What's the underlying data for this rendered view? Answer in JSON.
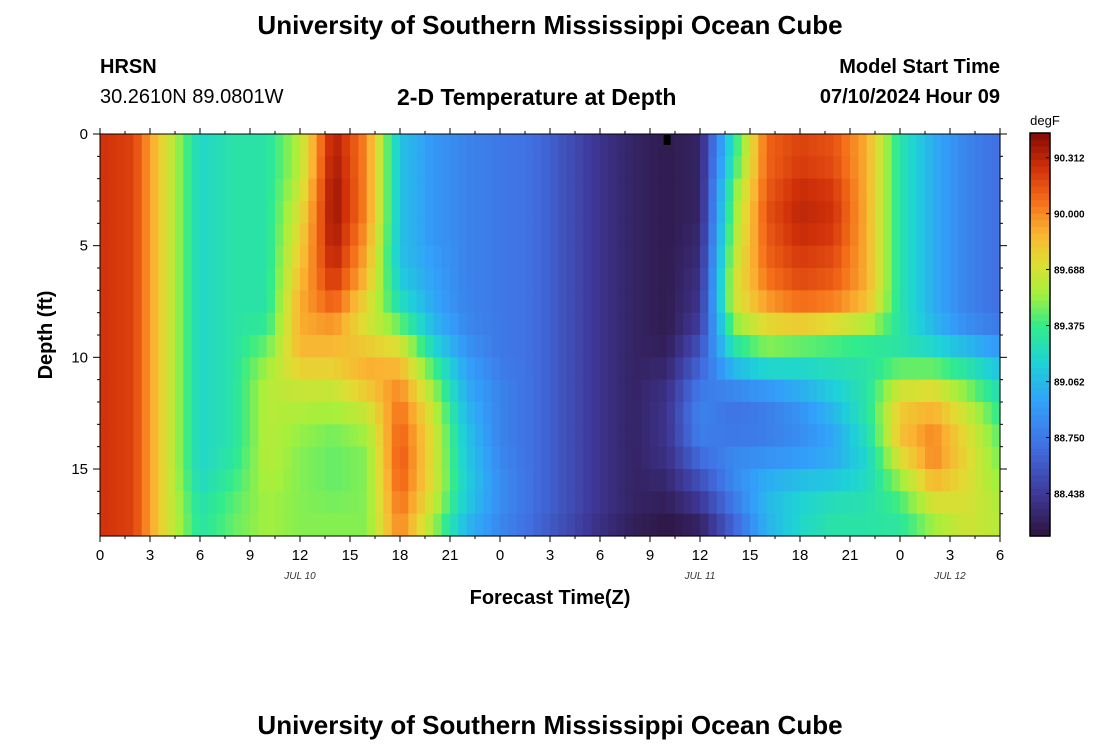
{
  "header": {
    "title_top": "University of Southern Mississippi Ocean Cube",
    "title_bottom": "University of Southern Mississippi Ocean Cube",
    "station": "HRSN",
    "coords": "30.2610N  89.0801W",
    "center_title": "2-D Temperature at Depth",
    "model_label": "Model Start Time",
    "model_time": "07/10/2024 Hour 09"
  },
  "chart_data": {
    "type": "heatmap",
    "title": "2-D Temperature at Depth",
    "xlabel": "Forecast Time(Z)",
    "ylabel": "Depth (ft)",
    "xlim": [
      0,
      54
    ],
    "ylim": [
      0,
      18
    ],
    "x_ticks": [
      "0",
      "3",
      "6",
      "9",
      "12",
      "15",
      "18",
      "21",
      "0",
      "3",
      "6",
      "9",
      "12",
      "15",
      "18",
      "21",
      "0",
      "3",
      "6"
    ],
    "y_ticks": [
      "0",
      "5",
      "10",
      "15"
    ],
    "date_labels": [
      {
        "text": "JUL 10",
        "hour": 12
      },
      {
        "text": "JUL 11",
        "hour": 36
      },
      {
        "text": "JUL 12",
        "hour": 51
      }
    ],
    "colorbar": {
      "unit": "degF",
      "min": 88.2,
      "max": 90.45,
      "ticks": [
        "90.312",
        "90.000",
        "89.688",
        "89.375",
        "89.062",
        "88.750",
        "88.438"
      ]
    },
    "grid": false,
    "depths_ft": [
      0,
      1,
      2,
      3,
      4,
      5,
      6,
      7,
      8,
      9,
      10,
      11,
      12,
      13,
      14,
      15,
      16,
      17,
      18
    ],
    "hours": [
      0,
      2,
      4,
      6,
      8,
      10,
      12,
      14,
      16,
      18,
      20,
      22,
      24,
      26,
      28,
      30,
      32,
      34,
      36,
      38,
      40,
      42,
      44,
      46,
      48,
      50,
      52,
      54
    ],
    "values_degF": [
      [
        90.25,
        90.2,
        89.7,
        89.2,
        89.3,
        89.3,
        89.6,
        90.35,
        90.0,
        89.1,
        88.9,
        88.8,
        88.75,
        88.7,
        88.55,
        88.4,
        88.3,
        88.25,
        88.3,
        89.3,
        90.1,
        90.2,
        90.15,
        89.9,
        89.3,
        89.0,
        88.8,
        88.7
      ],
      [
        90.25,
        90.2,
        89.7,
        89.2,
        89.3,
        89.3,
        89.6,
        90.35,
        90.0,
        89.1,
        88.9,
        88.8,
        88.75,
        88.7,
        88.55,
        88.4,
        88.3,
        88.25,
        88.3,
        89.3,
        90.1,
        90.2,
        90.15,
        89.9,
        89.3,
        89.0,
        88.8,
        88.7
      ],
      [
        90.25,
        90.2,
        89.7,
        89.2,
        89.3,
        89.3,
        89.6,
        90.4,
        90.0,
        89.1,
        88.9,
        88.8,
        88.75,
        88.7,
        88.55,
        88.4,
        88.3,
        88.25,
        88.3,
        89.4,
        90.1,
        90.25,
        90.2,
        89.9,
        89.3,
        89.0,
        88.8,
        88.7
      ],
      [
        90.25,
        90.2,
        89.7,
        89.2,
        89.3,
        89.3,
        89.7,
        90.4,
        90.0,
        89.1,
        88.9,
        88.8,
        88.75,
        88.7,
        88.55,
        88.4,
        88.3,
        88.25,
        88.3,
        89.5,
        90.15,
        90.3,
        90.25,
        89.9,
        89.3,
        89.0,
        88.8,
        88.7
      ],
      [
        90.25,
        90.2,
        89.7,
        89.2,
        89.3,
        89.3,
        89.7,
        90.4,
        90.0,
        89.1,
        88.9,
        88.8,
        88.75,
        88.7,
        88.55,
        88.4,
        88.3,
        88.25,
        88.3,
        89.5,
        90.15,
        90.3,
        90.25,
        89.9,
        89.3,
        89.0,
        88.8,
        88.7
      ],
      [
        90.25,
        90.2,
        89.7,
        89.2,
        89.3,
        89.3,
        89.8,
        90.35,
        89.9,
        89.1,
        88.9,
        88.8,
        88.75,
        88.7,
        88.55,
        88.4,
        88.3,
        88.25,
        88.35,
        89.6,
        90.1,
        90.25,
        90.2,
        89.9,
        89.3,
        89.0,
        88.8,
        88.7
      ],
      [
        90.25,
        90.2,
        89.7,
        89.2,
        89.3,
        89.3,
        89.8,
        90.3,
        89.9,
        89.1,
        88.95,
        88.8,
        88.75,
        88.7,
        88.55,
        88.4,
        88.3,
        88.25,
        88.35,
        89.6,
        90.1,
        90.2,
        90.15,
        89.9,
        89.3,
        89.0,
        88.8,
        88.7
      ],
      [
        90.25,
        90.2,
        89.7,
        89.2,
        89.3,
        89.3,
        89.9,
        90.2,
        89.8,
        89.2,
        88.95,
        88.8,
        88.75,
        88.7,
        88.55,
        88.4,
        88.3,
        88.25,
        88.4,
        89.7,
        90.0,
        90.15,
        90.1,
        89.9,
        89.3,
        89.0,
        88.8,
        88.7
      ],
      [
        90.25,
        90.2,
        89.7,
        89.2,
        89.3,
        89.3,
        89.9,
        90.05,
        89.7,
        89.3,
        89.0,
        88.8,
        88.75,
        88.7,
        88.55,
        88.4,
        88.3,
        88.25,
        88.4,
        89.6,
        89.9,
        90.0,
        89.95,
        89.8,
        89.3,
        89.0,
        88.8,
        88.7
      ],
      [
        90.25,
        90.2,
        89.7,
        89.2,
        89.3,
        89.4,
        89.9,
        89.9,
        89.7,
        89.6,
        89.1,
        88.85,
        88.75,
        88.7,
        88.55,
        88.4,
        88.3,
        88.25,
        88.5,
        89.4,
        89.6,
        89.6,
        89.5,
        89.4,
        89.3,
        89.1,
        88.9,
        88.8
      ],
      [
        90.25,
        90.2,
        89.7,
        89.2,
        89.3,
        89.5,
        89.85,
        89.85,
        89.9,
        89.8,
        89.3,
        88.9,
        88.75,
        88.7,
        88.55,
        88.4,
        88.3,
        88.3,
        88.6,
        89.2,
        89.4,
        89.3,
        89.3,
        89.3,
        89.3,
        89.3,
        89.2,
        89.0
      ],
      [
        90.25,
        90.2,
        89.7,
        89.2,
        89.3,
        89.6,
        89.7,
        89.7,
        89.9,
        89.95,
        89.5,
        89.0,
        88.8,
        88.7,
        88.55,
        88.4,
        88.3,
        88.35,
        88.7,
        88.9,
        89.0,
        89.1,
        89.2,
        89.3,
        89.6,
        89.6,
        89.4,
        89.2
      ],
      [
        90.25,
        90.2,
        89.7,
        89.2,
        89.3,
        89.6,
        89.6,
        89.6,
        89.7,
        90.05,
        89.6,
        89.0,
        88.8,
        88.7,
        88.55,
        88.4,
        88.3,
        88.4,
        88.8,
        88.75,
        88.8,
        88.9,
        89.1,
        89.3,
        89.75,
        89.85,
        89.6,
        89.3
      ],
      [
        90.25,
        90.2,
        89.7,
        89.2,
        89.3,
        89.6,
        89.55,
        89.5,
        89.6,
        90.1,
        89.7,
        89.1,
        88.8,
        88.7,
        88.55,
        88.4,
        88.3,
        88.4,
        88.8,
        88.7,
        88.75,
        88.85,
        89.0,
        89.3,
        89.85,
        89.95,
        89.7,
        89.4
      ],
      [
        90.25,
        90.2,
        89.7,
        89.2,
        89.3,
        89.6,
        89.5,
        89.45,
        89.5,
        90.15,
        89.7,
        89.1,
        88.8,
        88.7,
        88.55,
        88.4,
        88.3,
        88.4,
        88.75,
        88.8,
        88.8,
        88.85,
        88.95,
        89.2,
        89.8,
        90.05,
        89.75,
        89.45
      ],
      [
        90.25,
        90.2,
        89.7,
        89.2,
        89.35,
        89.6,
        89.5,
        89.45,
        89.5,
        90.15,
        89.7,
        89.15,
        88.85,
        88.7,
        88.55,
        88.4,
        88.3,
        88.35,
        88.6,
        88.85,
        88.95,
        89.0,
        89.05,
        89.2,
        89.6,
        89.95,
        89.75,
        89.5
      ],
      [
        90.25,
        90.2,
        89.7,
        89.25,
        89.4,
        89.55,
        89.5,
        89.45,
        89.5,
        90.1,
        89.7,
        89.15,
        88.85,
        88.7,
        88.55,
        88.4,
        88.3,
        88.3,
        88.5,
        88.8,
        89.05,
        89.15,
        89.2,
        89.25,
        89.45,
        89.8,
        89.7,
        89.55
      ],
      [
        90.25,
        90.2,
        89.7,
        89.3,
        89.45,
        89.55,
        89.5,
        89.5,
        89.5,
        90.05,
        89.6,
        89.1,
        88.85,
        88.7,
        88.55,
        88.4,
        88.3,
        88.25,
        88.35,
        88.7,
        89.05,
        89.2,
        89.3,
        89.3,
        89.35,
        89.6,
        89.7,
        89.6
      ],
      [
        90.25,
        90.2,
        89.7,
        89.3,
        89.45,
        89.55,
        89.5,
        89.5,
        89.5,
        90.0,
        89.5,
        89.0,
        88.8,
        88.65,
        88.5,
        88.35,
        88.25,
        88.2,
        88.25,
        88.6,
        89.0,
        89.2,
        89.3,
        89.3,
        89.3,
        89.5,
        89.65,
        89.6
      ]
    ],
    "min_marker": {
      "hour": 34,
      "depth_ft": 0
    }
  }
}
